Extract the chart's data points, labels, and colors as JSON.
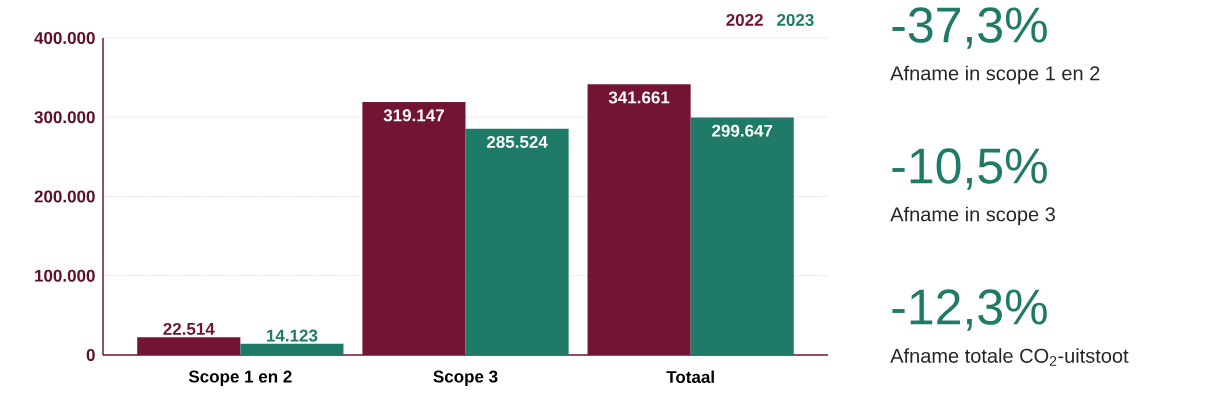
{
  "chart_data": [
    {
      "type": "bar",
      "categories": [
        "Scope 1 en 2",
        "Scope 3",
        "Totaal"
      ],
      "series": [
        {
          "name": "2022",
          "color": "#741434",
          "values": [
            22514,
            319147,
            341661
          ],
          "value_labels": [
            "22.514",
            "319.147",
            "341.661"
          ]
        },
        {
          "name": "2023",
          "color": "#1f7b67",
          "values": [
            14123,
            285524,
            299647
          ],
          "value_labels": [
            "14.123",
            "285.524",
            "299.647"
          ]
        }
      ],
      "ylim": [
        0,
        400000
      ],
      "yticks": [
        0,
        {
          "value": 100000,
          "label": "100.000"
        },
        {
          "value": 200000,
          "label": "200.000"
        },
        {
          "value": 300000,
          "label": "300.000"
        },
        {
          "value": 400000,
          "label": "400.000"
        }
      ],
      "grid": "y",
      "legend": "top right"
    },
    {
      "type": "other",
      "annotations": [
        "-37,3%",
        "Afname in scope 1 en 2",
        "-10,5%",
        "Afname in scope 3",
        "-12,3%",
        "Afname totale CO$_{2}$-uitstoot"
      ]
    }
  ]
}
